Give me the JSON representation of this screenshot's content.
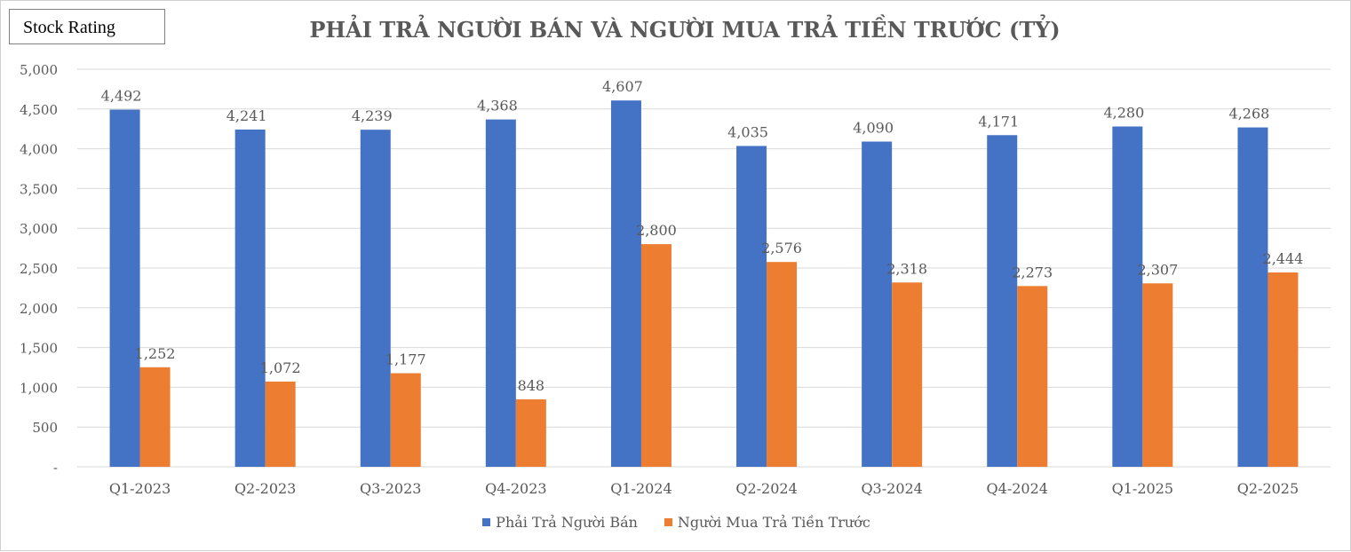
{
  "badge": {
    "label": "Stock Rating"
  },
  "chart_data": {
    "type": "bar",
    "title": "PHẢI TRẢ NGƯỜI BÁN VÀ NGƯỜI MUA TRẢ TIỀN TRƯỚC (TỶ)",
    "categories": [
      "Q1-2023",
      "Q2-2023",
      "Q3-2023",
      "Q4-2023",
      "Q1-2024",
      "Q2-2024",
      "Q3-2024",
      "Q4-2024",
      "Q1-2025",
      "Q2-2025"
    ],
    "series": [
      {
        "name": "Phải Trả Người Bán",
        "color": "#4472C4",
        "values": [
          4492,
          4241,
          4239,
          4368,
          4607,
          4035,
          4090,
          4171,
          4280,
          4268
        ],
        "labels": [
          "4,492",
          "4,241",
          "4,239",
          "4,368",
          "4,607",
          "4,035",
          "4,090",
          "4,171",
          "4,280",
          "4,268"
        ]
      },
      {
        "name": "Người Mua Trả Tiền Trước",
        "color": "#ED7D31",
        "values": [
          1252,
          1072,
          1177,
          848,
          2800,
          2576,
          2318,
          2273,
          2307,
          2444
        ],
        "labels": [
          "1,252",
          "1,072",
          "1,177",
          "848",
          "2,800",
          "2,576",
          "2,318",
          "2,273",
          "2,307",
          "2,444"
        ]
      }
    ],
    "ylim": [
      0,
      5000
    ],
    "yticks": [
      0,
      500,
      1000,
      1500,
      2000,
      2500,
      3000,
      3500,
      4000,
      4500,
      5000
    ],
    "ytick_labels": [
      "-",
      "500",
      "1,000",
      "1,500",
      "2,000",
      "2,500",
      "3,000",
      "3,500",
      "4,000",
      "4,500",
      "5,000"
    ],
    "xlabel": "",
    "ylabel": "",
    "grid": true,
    "legend_position": "bottom"
  }
}
